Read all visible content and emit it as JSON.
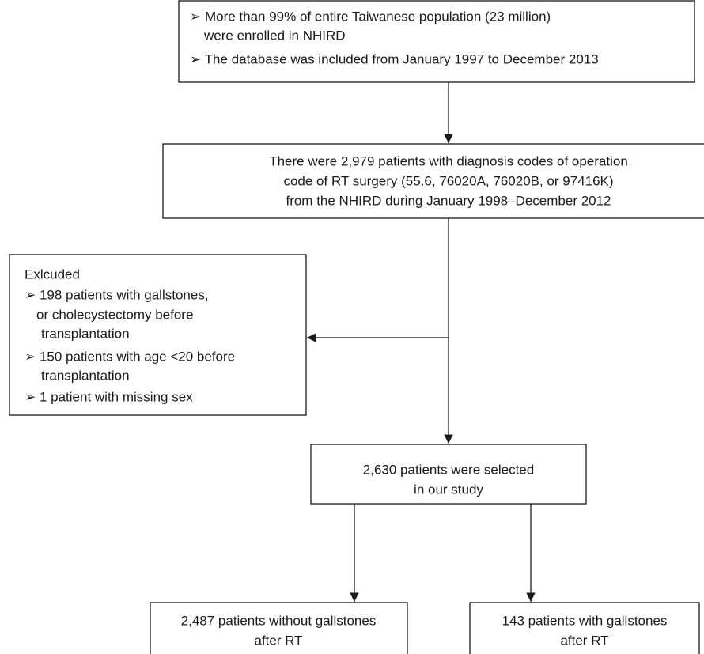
{
  "nodes": [
    {
      "lines": [
        "➢ More than 99% of entire Taiwanese population (23 million)",
        "were enrolled in NHIRD",
        "➢ The database was included from January 1997 to December 2013"
      ]
    },
    {
      "lines": [
        "There were 2,979 patients with diagnosis codes of operation",
        "code of RT surgery (55.6, 76020A, 76020B, or 97416K)",
        "from the NHIRD during January 1998–December 2012"
      ]
    },
    {
      "lines": [
        "Exlcuded",
        "➢ 198 patients with gallstones,",
        "or cholecystectomy before",
        "transplantation",
        "➢ 150 patients with age <20 before",
        "transplantation",
        "➢ 1 patient with missing sex"
      ]
    },
    {
      "lines": [
        "2,630 patients were selected",
        "in our study"
      ]
    },
    {
      "lines": [
        "2,487 patients without gallstones",
        "after RT"
      ]
    },
    {
      "lines": [
        "143 patients with gallstones",
        "after RT"
      ]
    }
  ]
}
